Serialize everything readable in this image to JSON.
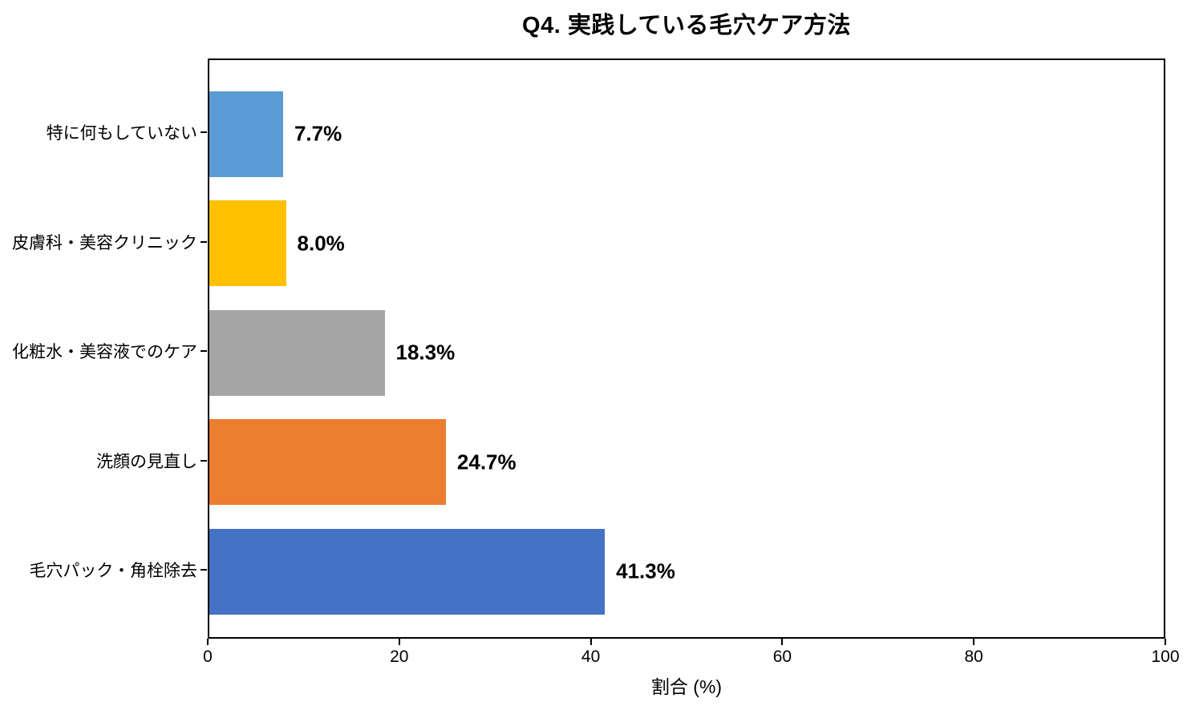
{
  "chart_data": {
    "type": "bar",
    "orientation": "horizontal",
    "title": "Q4. 実践している毛穴ケア方法",
    "categories": [
      "特に何もしていない",
      "皮膚科・美容クリニック",
      "化粧水・美容液でのケア",
      "洗顔の見直し",
      "毛穴パック・角栓除去"
    ],
    "values": [
      7.7,
      8.0,
      18.3,
      24.7,
      41.3
    ],
    "value_labels": [
      "7.7%",
      "8.0%",
      "18.3%",
      "24.7%",
      "41.3%"
    ],
    "bar_colors": [
      "#5B9BD5",
      "#FFC000",
      "#A5A5A5",
      "#ED7D31",
      "#4472C4"
    ],
    "xlabel": "割合 (%)",
    "xlim": [
      0,
      100
    ],
    "xticks": [
      0,
      20,
      40,
      60,
      80,
      100
    ],
    "grid": false,
    "legend": "none",
    "axis_color": "#000000",
    "background_color": "#FFFFFF",
    "title_color": "#000000"
  }
}
